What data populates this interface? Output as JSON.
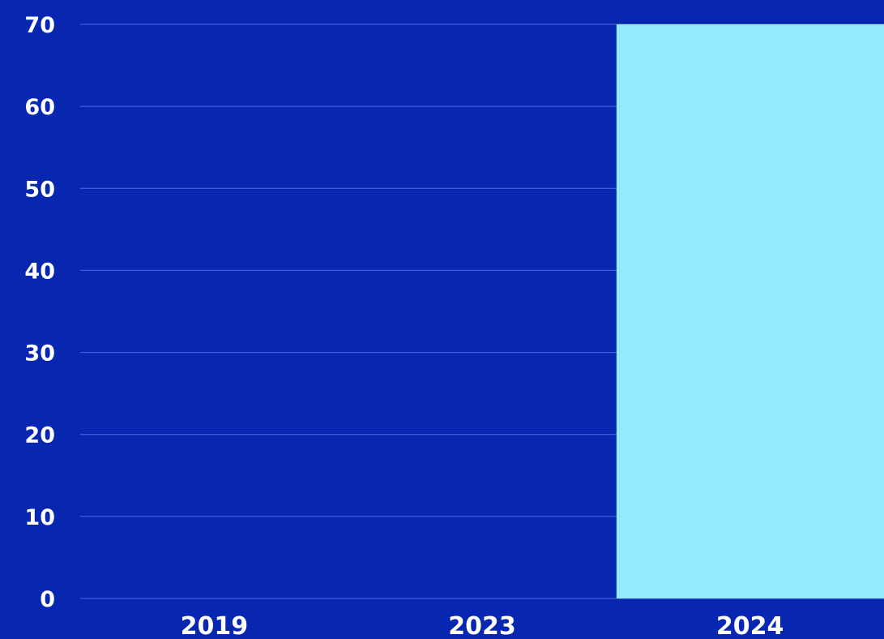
{
  "colors": {
    "background": "#0727B0",
    "bar": "#94EAFC",
    "gridline": "#4F6BE0",
    "text": "#FFFFFF"
  },
  "chart_data": {
    "type": "bar",
    "categories": [
      "2019",
      "2023",
      "2024"
    ],
    "values": [
      0,
      0,
      70
    ],
    "yticks": [
      0,
      10,
      20,
      30,
      40,
      50,
      60,
      70
    ],
    "ylim": [
      0,
      70
    ],
    "grid": true,
    "legend": "none"
  }
}
